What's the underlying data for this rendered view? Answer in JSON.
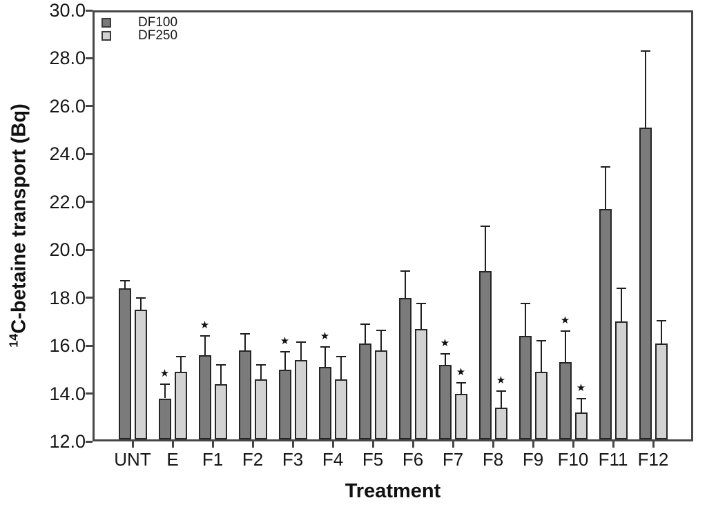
{
  "axes": {
    "y_title_sup": "14",
    "y_title_text": "C-betaine transport (Bq)",
    "x_title": "Treatment"
  },
  "legend": {
    "position": "top-left-inside",
    "items": [
      {
        "label": "DF100",
        "color": "#7b7b7b"
      },
      {
        "label": "DF250",
        "color": "#d2d2d2"
      }
    ]
  },
  "chart_data": {
    "type": "bar",
    "title": "",
    "xlabel": "Treatment",
    "ylabel": "14C-betaine transport (Bq)",
    "ylim": [
      12.0,
      30.0
    ],
    "ytick_step": 2.0,
    "ytick_labels": [
      "30.0",
      "28.0",
      "26.0",
      "24.0",
      "22.0",
      "20.0",
      "18.0",
      "16.0",
      "14.0",
      "12.0"
    ],
    "grid": false,
    "error_bars": "upper only",
    "significance_marker": "star above error bar",
    "categories": [
      "UNT",
      "E",
      "F1",
      "F2",
      "F3",
      "F4",
      "F5",
      "F6",
      "F7",
      "F8",
      "F9",
      "F10",
      "F11",
      "F12"
    ],
    "series": [
      {
        "name": "DF100",
        "color": "#7b7b7b",
        "values": [
          18.4,
          13.8,
          15.6,
          15.8,
          15.0,
          15.1,
          16.1,
          18.0,
          15.2,
          19.1,
          16.4,
          15.3,
          21.7,
          25.1
        ],
        "errors": [
          0.3,
          0.6,
          0.8,
          0.7,
          0.75,
          0.85,
          0.8,
          1.1,
          0.45,
          1.9,
          1.35,
          1.3,
          1.75,
          3.2
        ],
        "significant": [
          false,
          true,
          true,
          false,
          true,
          true,
          false,
          false,
          true,
          false,
          false,
          true,
          false,
          false
        ]
      },
      {
        "name": "DF250",
        "color": "#d2d2d2",
        "values": [
          17.5,
          14.9,
          14.4,
          14.6,
          15.4,
          14.6,
          15.8,
          16.7,
          14.0,
          13.4,
          14.9,
          13.2,
          17.0,
          16.1
        ],
        "errors": [
          0.5,
          0.65,
          0.8,
          0.6,
          0.75,
          0.95,
          0.85,
          1.05,
          0.45,
          0.7,
          1.3,
          0.6,
          1.4,
          0.95
        ],
        "significant": [
          false,
          false,
          false,
          false,
          false,
          false,
          false,
          false,
          true,
          true,
          false,
          true,
          false,
          false
        ]
      }
    ]
  }
}
